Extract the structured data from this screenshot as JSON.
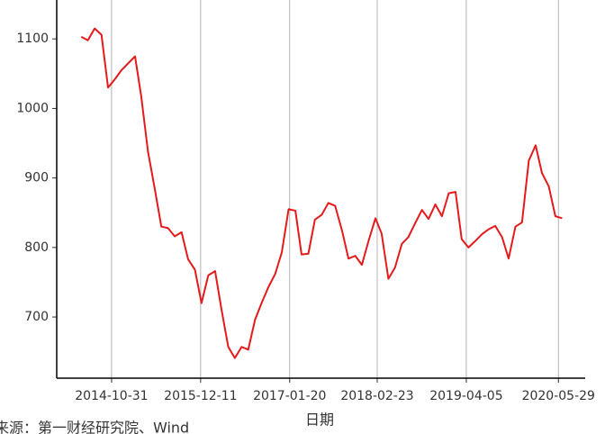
{
  "chart_data": {
    "type": "line",
    "x_label": "日期",
    "source": "来源：第一财经研究院、Wind",
    "xlim": [
      "2014-02-23",
      "2020-09-28"
    ],
    "xticks": [
      "2014-10-31",
      "2015-12-11",
      "2017-01-20",
      "2018-02-23",
      "2019-04-05",
      "2020-05-29"
    ],
    "ylim": [
      612,
      1156
    ],
    "yticks": [
      700,
      800,
      900,
      1000,
      1100
    ],
    "grid_x": true,
    "series": [
      {
        "color": "#e41a1c",
        "x": [
          "2014-06-15",
          "2014-07-15",
          "2014-08-15",
          "2014-09-15",
          "2014-10-15",
          "2014-11-15",
          "2014-12-15",
          "2015-01-15",
          "2015-02-15",
          "2015-03-15",
          "2015-04-15",
          "2015-05-15",
          "2015-06-15",
          "2015-07-15",
          "2015-08-15",
          "2015-09-15",
          "2015-10-15",
          "2015-11-15",
          "2015-12-15",
          "2016-01-15",
          "2016-02-15",
          "2016-03-15",
          "2016-04-15",
          "2016-05-15",
          "2016-06-15",
          "2016-07-15",
          "2016-08-15",
          "2016-09-15",
          "2016-10-15",
          "2016-11-15",
          "2016-12-15",
          "2017-01-15",
          "2017-02-15",
          "2017-03-15",
          "2017-04-15",
          "2017-05-15",
          "2017-06-15",
          "2017-07-15",
          "2017-08-15",
          "2017-09-15",
          "2017-10-15",
          "2017-11-15",
          "2017-12-15",
          "2018-01-15",
          "2018-02-15",
          "2018-03-15",
          "2018-04-15",
          "2018-05-15",
          "2018-06-15",
          "2018-07-15",
          "2018-08-15",
          "2018-09-15",
          "2018-10-15",
          "2018-11-15",
          "2018-12-15",
          "2019-01-15",
          "2019-02-15",
          "2019-03-15",
          "2019-04-15",
          "2019-05-15",
          "2019-06-15",
          "2019-07-15",
          "2019-08-15",
          "2019-09-15",
          "2019-10-15",
          "2019-11-15",
          "2019-12-15",
          "2020-01-15",
          "2020-02-15",
          "2020-03-15",
          "2020-04-15",
          "2020-05-15",
          "2020-06-15"
        ],
        "values": [
          1103,
          1098,
          1115,
          1106,
          1030,
          1042,
          1055,
          1065,
          1075,
          1018,
          938,
          886,
          830,
          828,
          816,
          822,
          783,
          768,
          720,
          760,
          766,
          711,
          657,
          641,
          657,
          653,
          696,
          721,
          743,
          762,
          793,
          855,
          853,
          790,
          791,
          840,
          847,
          864,
          860,
          825,
          784,
          788,
          775,
          810,
          842,
          820,
          755,
          771,
          805,
          815,
          835,
          854,
          841,
          862,
          845,
          878,
          880,
          812,
          800,
          809,
          819,
          826,
          831,
          815,
          784,
          830,
          836,
          925,
          947,
          907,
          888,
          845,
          842
        ]
      }
    ]
  }
}
